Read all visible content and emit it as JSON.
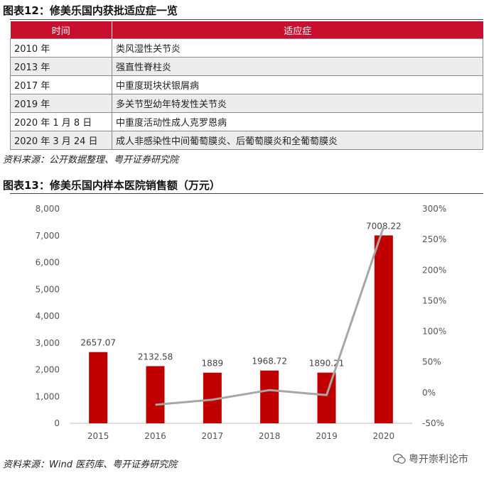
{
  "table1": {
    "title": "图表12：修美乐国内获批适应症一览",
    "headers": [
      "时间",
      "适应症"
    ],
    "rows": [
      [
        "2010 年",
        "类风湿性关节炎"
      ],
      [
        "2013 年",
        "强直性脊柱炎"
      ],
      [
        "2017 年",
        "中重度斑块状银屑病"
      ],
      [
        "2019 年",
        "多关节型幼年特发性关节炎"
      ],
      [
        "2020 年 1 月 8 日",
        "中重度活动性成人克罗恩病"
      ],
      [
        "2020 年 3 月 24 日",
        "成人非感染性中间葡萄膜炎、后葡萄膜炎和全葡萄膜炎"
      ]
    ],
    "source": "资料来源：公开数据整理、粤开证券研究院",
    "header_color": "#c8102e"
  },
  "chart": {
    "title": "图表13：修美乐国内样本医院销售额（万元）",
    "source": "资料来源：Wind 医药库、粤开证券研究院",
    "watermark": "粤开崇利论市"
  },
  "chart_data": {
    "type": "bar",
    "categories": [
      "2015",
      "2016",
      "2017",
      "2018",
      "2019",
      "2020"
    ],
    "series": [
      {
        "type": "bar",
        "axis": "left",
        "values": [
          2657.07,
          2132.58,
          1889,
          1968.72,
          1890.21,
          7008.22
        ],
        "data_labels": [
          "2657.07",
          "2132.58",
          "1889",
          "1968.72",
          "1890.21",
          "7008.22"
        ],
        "color": "#c00000"
      },
      {
        "type": "line",
        "axis": "right",
        "values": [
          null,
          -19.7,
          -11.4,
          4.2,
          -4.0,
          270.8
        ],
        "color": "#a6a6a6"
      }
    ],
    "y_left": {
      "lim": [
        0,
        8000
      ],
      "ticks": [
        0,
        1000,
        2000,
        3000,
        4000,
        5000,
        6000,
        7000,
        8000
      ],
      "tick_labels": [
        "0",
        "1,000",
        "2,000",
        "3,000",
        "4,000",
        "5,000",
        "6,000",
        "7,000",
        "8,000"
      ]
    },
    "y_right": {
      "lim": [
        -50,
        300
      ],
      "ticks": [
        -50,
        0,
        50,
        100,
        150,
        200,
        250,
        300
      ],
      "tick_labels": [
        "-50%",
        "0%",
        "50%",
        "100%",
        "150%",
        "200%",
        "250%",
        "300%"
      ]
    },
    "grid": false,
    "legend": "none"
  }
}
